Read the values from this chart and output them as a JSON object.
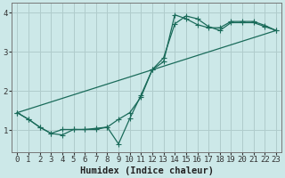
{
  "background_color": "#cce8e8",
  "grid_color": "#b0cccc",
  "line_color": "#1a6b5a",
  "xlabel": "Humidex (Indice chaleur)",
  "xlim": [
    -0.5,
    23.5
  ],
  "ylim": [
    0.45,
    4.25
  ],
  "yticks": [
    1,
    2,
    3,
    4
  ],
  "xticks": [
    0,
    1,
    2,
    3,
    4,
    5,
    6,
    7,
    8,
    9,
    10,
    11,
    12,
    13,
    14,
    15,
    16,
    17,
    18,
    19,
    20,
    21,
    22,
    23
  ],
  "line1_x": [
    0,
    1,
    2,
    3,
    4,
    5,
    6,
    7,
    8,
    9,
    10,
    11,
    12,
    13,
    14,
    15,
    16,
    17,
    18,
    19,
    20,
    21,
    22,
    23
  ],
  "line1_y": [
    1.45,
    1.28,
    1.08,
    0.92,
    0.88,
    1.02,
    1.02,
    1.05,
    1.08,
    0.65,
    1.3,
    1.9,
    2.55,
    2.75,
    3.95,
    3.85,
    3.7,
    3.62,
    3.62,
    3.78,
    3.78,
    3.78,
    3.68,
    3.55
  ],
  "line2_x": [
    0,
    1,
    2,
    3,
    4,
    5,
    6,
    7,
    8,
    9,
    10,
    11,
    12,
    13,
    14,
    15,
    16,
    17,
    18,
    19,
    20,
    21,
    22,
    23
  ],
  "line2_y": [
    1.45,
    1.28,
    1.08,
    0.92,
    1.02,
    1.02,
    1.02,
    1.02,
    1.08,
    1.28,
    1.45,
    1.85,
    2.55,
    2.85,
    3.72,
    3.92,
    3.85,
    3.65,
    3.55,
    3.75,
    3.75,
    3.75,
    3.65,
    3.55
  ],
  "line3_x": [
    0,
    23
  ],
  "line3_y": [
    1.45,
    3.55
  ],
  "tick_fontsize": 6.5,
  "label_fontsize": 7.5,
  "marker_size": 2.5,
  "line_width": 0.9
}
